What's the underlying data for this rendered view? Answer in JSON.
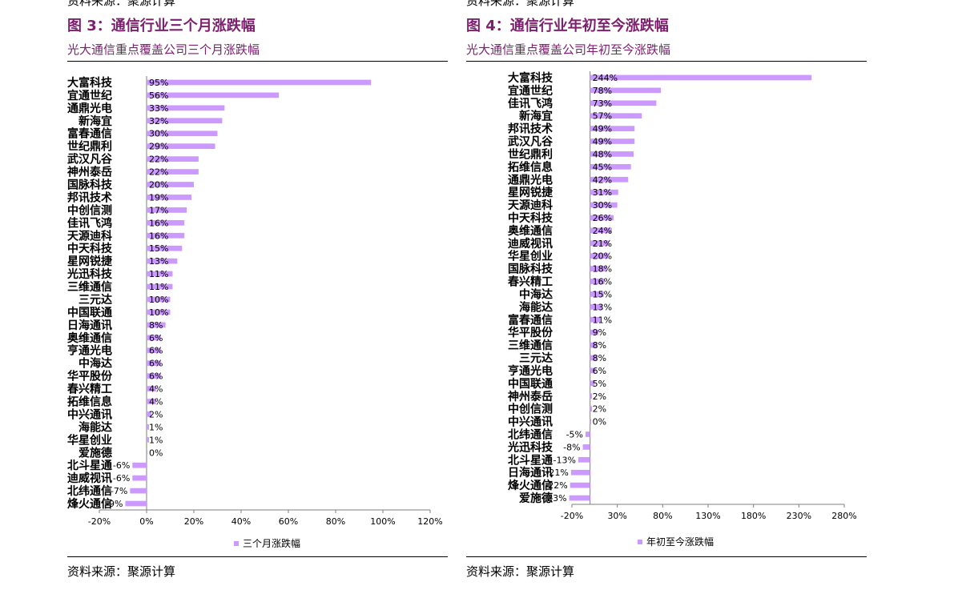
{
  "left": {
    "top_source": "资料来源：聚源计算",
    "title": "图 3：通信行业三个月涨跌幅",
    "subtitle": "光大通信重点覆盖公司三个月涨跌幅",
    "source": "资料来源：聚源计算"
  },
  "right": {
    "top_source": "资料来源：聚源计算",
    "title": "图 4：通信行业年初至今涨跌幅",
    "subtitle": "光大通信重点覆盖公司年初至今涨跌幅",
    "source": "资料来源：聚源计算"
  },
  "colors": {
    "bar": "#cc99ff",
    "title": "#7b1f6e",
    "axis": "#7f7f7f"
  },
  "chart_data": [
    {
      "type": "bar",
      "orientation": "horizontal",
      "title": "光大通信重点覆盖公司三个月涨跌幅",
      "legend": "三个月涨跌幅",
      "legend_position": "bottom",
      "xlim": [
        -20,
        120
      ],
      "xticks": [
        -20,
        0,
        20,
        40,
        60,
        80,
        100,
        120
      ],
      "xtick_labels": [
        "-20%",
        "0%",
        "20%",
        "40%",
        "60%",
        "80%",
        "100%",
        "120%"
      ],
      "categories": [
        "大富科技",
        "宜通世纪",
        "通鼎光电",
        "新海宜",
        "富春通信",
        "世纪鼎利",
        "武汉凡谷",
        "神州泰岳",
        "国脉科技",
        "邦讯技术",
        "中创信测",
        "佳讯飞鸿",
        "天源迪科",
        "中天科技",
        "星网锐捷",
        "光迅科技",
        "三维通信",
        "三元达",
        "中国联通",
        "日海通讯",
        "奥维通信",
        "亨通光电",
        "中海达",
        "华平股份",
        "春兴精工",
        "拓维信息",
        "中兴通讯",
        "海能达",
        "华星创业",
        "爱施德",
        "北斗星通",
        "迪威视讯",
        "北纬通信",
        "烽火通信"
      ],
      "values": [
        95,
        56,
        33,
        32,
        30,
        29,
        22,
        22,
        20,
        19,
        17,
        16,
        16,
        15,
        13,
        11,
        11,
        10,
        10,
        8,
        6,
        6,
        6,
        6,
        4,
        4,
        2,
        1,
        1,
        0,
        -6,
        -6,
        -7,
        -9
      ],
      "data_labels": [
        "95%",
        "56%",
        "33%",
        "32%",
        "30%",
        "29%",
        "22%",
        "22%",
        "20%",
        "19%",
        "17%",
        "16%",
        "16%",
        "15%",
        "13%",
        "11%",
        "11%",
        "10%",
        "10%",
        "8%",
        "6%",
        "6%",
        "6%",
        "6%",
        "4%",
        "4%",
        "2%",
        "1%",
        "1%",
        "0%",
        "-6%",
        "-6%",
        "-7%",
        "-9%"
      ]
    },
    {
      "type": "bar",
      "orientation": "horizontal",
      "title": "光大通信重点覆盖公司年初至今涨跌幅",
      "legend": "年初至今涨跌幅",
      "legend_position": "bottom",
      "xlim": [
        -20,
        280
      ],
      "xticks": [
        -20,
        30,
        80,
        130,
        180,
        230,
        280
      ],
      "xtick_labels": [
        "-20%",
        "30%",
        "80%",
        "130%",
        "180%",
        "230%",
        "280%"
      ],
      "categories": [
        "大富科技",
        "宜通世纪",
        "佳讯飞鸿",
        "新海宜",
        "邦讯技术",
        "武汉凡谷",
        "世纪鼎利",
        "拓维信息",
        "通鼎光电",
        "星网锐捷",
        "天源迪科",
        "中天科技",
        "奥维通信",
        "迪威视讯",
        "华星创业",
        "国脉科技",
        "春兴精工",
        "中海达",
        "海能达",
        "富春通信",
        "华平股份",
        "三维通信",
        "三元达",
        "亨通光电",
        "中国联通",
        "神州泰岳",
        "中创信测",
        "中兴通讯",
        "北纬通信",
        "光迅科技",
        "北斗星通",
        "日海通讯",
        "烽火通信",
        "爱施德"
      ],
      "values": [
        244,
        78,
        73,
        57,
        49,
        49,
        48,
        45,
        42,
        31,
        30,
        26,
        24,
        21,
        20,
        18,
        16,
        15,
        13,
        11,
        9,
        8,
        8,
        6,
        5,
        2,
        2,
        0,
        -5,
        -8,
        -13,
        -21,
        -22,
        -23
      ],
      "data_labels": [
        "244%",
        "78%",
        "73%",
        "57%",
        "49%",
        "49%",
        "48%",
        "45%",
        "42%",
        "31%",
        "30%",
        "26%",
        "24%",
        "21%",
        "20%",
        "18%",
        "16%",
        "15%",
        "13%",
        "11%",
        "9%",
        "8%",
        "8%",
        "6%",
        "5%",
        "2%",
        "2%",
        "0%",
        "-5%",
        "-8%",
        "-13%",
        "-21%",
        "-22%",
        "-23%"
      ]
    }
  ]
}
